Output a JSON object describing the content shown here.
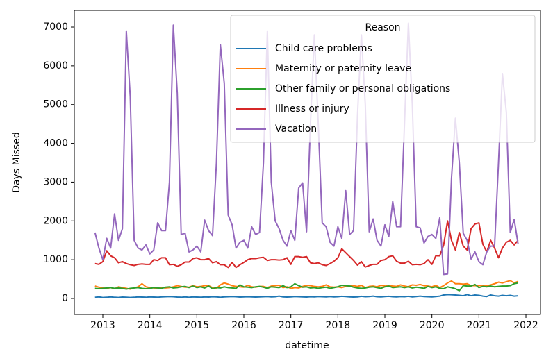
{
  "chart_data": {
    "type": "line",
    "xlabel": "datetime",
    "ylabel": "Days Missed",
    "legend_title": "Reason",
    "legend": "upper right",
    "grid": false,
    "xlim": [
      2012.394,
      2022.31
    ],
    "xticks": [
      2013,
      2014,
      2015,
      2016,
      2017,
      2018,
      2019,
      2020,
      2021,
      2022
    ],
    "ylim": [
      -412,
      7430
    ],
    "yticks": [
      0,
      1000,
      2000,
      3000,
      4000,
      5000,
      6000,
      7000
    ],
    "x": [
      "2012-11",
      "2012-12",
      "2013-01",
      "2013-02",
      "2013-03",
      "2013-04",
      "2013-05",
      "2013-06",
      "2013-07",
      "2013-08",
      "2013-09",
      "2013-10",
      "2013-11",
      "2013-12",
      "2014-01",
      "2014-02",
      "2014-03",
      "2014-04",
      "2014-05",
      "2014-06",
      "2014-07",
      "2014-08",
      "2014-09",
      "2014-10",
      "2014-11",
      "2014-12",
      "2015-01",
      "2015-02",
      "2015-03",
      "2015-04",
      "2015-05",
      "2015-06",
      "2015-07",
      "2015-08",
      "2015-09",
      "2015-10",
      "2015-11",
      "2015-12",
      "2016-01",
      "2016-02",
      "2016-03",
      "2016-04",
      "2016-05",
      "2016-06",
      "2016-07",
      "2016-08",
      "2016-09",
      "2016-10",
      "2016-11",
      "2016-12",
      "2017-01",
      "2017-02",
      "2017-03",
      "2017-04",
      "2017-05",
      "2017-06",
      "2017-07",
      "2017-08",
      "2017-09",
      "2017-10",
      "2017-11",
      "2017-12",
      "2018-01",
      "2018-02",
      "2018-03",
      "2018-04",
      "2018-05",
      "2018-06",
      "2018-07",
      "2018-08",
      "2018-09",
      "2018-10",
      "2018-11",
      "2018-12",
      "2019-01",
      "2019-02",
      "2019-03",
      "2019-04",
      "2019-05",
      "2019-06",
      "2019-07",
      "2019-08",
      "2019-09",
      "2019-10",
      "2019-11",
      "2019-12",
      "2020-01",
      "2020-02",
      "2020-03",
      "2020-04",
      "2020-05",
      "2020-06",
      "2020-07",
      "2020-08",
      "2020-09",
      "2020-10",
      "2020-11",
      "2020-12",
      "2021-01",
      "2021-02",
      "2021-03",
      "2021-04",
      "2021-05",
      "2021-06",
      "2021-07",
      "2021-08",
      "2021-09",
      "2021-10",
      "2021-11"
    ],
    "series": [
      {
        "name": "Child care problems",
        "color": "#1f77b4",
        "values": [
          30,
          40,
          25,
          30,
          40,
          30,
          25,
          35,
          30,
          25,
          30,
          40,
          35,
          30,
          40,
          35,
          30,
          40,
          45,
          50,
          45,
          35,
          30,
          40,
          30,
          40,
          35,
          30,
          40,
          35,
          45,
          40,
          30,
          40,
          45,
          50,
          45,
          35,
          40,
          45,
          40,
          35,
          40,
          45,
          50,
          40,
          45,
          60,
          40,
          35,
          40,
          50,
          45,
          40,
          35,
          45,
          40,
          50,
          45,
          40,
          50,
          40,
          45,
          55,
          50,
          40,
          35,
          40,
          55,
          45,
          50,
          60,
          45,
          40,
          50,
          55,
          45,
          40,
          50,
          45,
          55,
          40,
          50,
          60,
          50,
          45,
          40,
          50,
          60,
          90,
          100,
          95,
          90,
          80,
          70,
          100,
          70,
          90,
          80,
          60,
          50,
          90,
          70,
          60,
          80,
          70,
          80,
          60,
          70
        ]
      },
      {
        "name": "Maternity or paternity leave",
        "color": "#ff7f0e",
        "values": [
          320,
          290,
          270,
          260,
          280,
          250,
          300,
          280,
          260,
          240,
          270,
          300,
          380,
          300,
          280,
          270,
          260,
          280,
          270,
          280,
          300,
          330,
          310,
          290,
          290,
          330,
          300,
          310,
          330,
          330,
          280,
          260,
          350,
          400,
          370,
          330,
          310,
          300,
          290,
          340,
          300,
          290,
          310,
          310,
          280,
          320,
          330,
          340,
          280,
          300,
          260,
          280,
          270,
          310,
          340,
          330,
          310,
          300,
          310,
          350,
          300,
          290,
          300,
          280,
          310,
          320,
          330,
          310,
          340,
          280,
          310,
          320,
          300,
          340,
          320,
          330,
          320,
          310,
          350,
          320,
          300,
          350,
          340,
          360,
          330,
          320,
          300,
          340,
          280,
          330,
          400,
          450,
          380,
          380,
          370,
          380,
          330,
          330,
          330,
          340,
          330,
          350,
          380,
          420,
          400,
          430,
          460,
          400,
          440
        ]
      },
      {
        "name": "Other family or personal obligations",
        "color": "#2ca02c",
        "values": [
          260,
          250,
          260,
          270,
          280,
          260,
          270,
          260,
          240,
          260,
          270,
          280,
          260,
          250,
          260,
          280,
          270,
          260,
          290,
          300,
          270,
          280,
          300,
          310,
          280,
          320,
          280,
          300,
          270,
          320,
          250,
          280,
          270,
          300,
          280,
          270,
          260,
          350,
          300,
          290,
          280,
          300,
          310,
          290,
          260,
          300,
          290,
          280,
          330,
          280,
          300,
          380,
          330,
          290,
          300,
          270,
          280,
          260,
          280,
          290,
          260,
          280,
          300,
          340,
          330,
          320,
          290,
          270,
          260,
          270,
          290,
          300,
          280,
          260,
          300,
          320,
          280,
          290,
          300,
          280,
          300,
          270,
          290,
          280,
          260,
          310,
          280,
          300,
          260,
          250,
          300,
          280,
          250,
          200,
          330,
          320,
          320,
          360,
          280,
          310,
          300,
          320,
          300,
          310,
          320,
          320,
          330,
          380,
          400
        ]
      },
      {
        "name": "Illness or injury",
        "color": "#d62728",
        "values": [
          900,
          880,
          950,
          1230,
          1100,
          1050,
          920,
          950,
          900,
          870,
          850,
          880,
          890,
          880,
          880,
          1000,
          980,
          1050,
          1050,
          870,
          880,
          830,
          870,
          940,
          940,
          1030,
          1050,
          1000,
          1000,
          1030,
          920,
          950,
          870,
          870,
          800,
          930,
          800,
          870,
          930,
          1000,
          1030,
          1030,
          1050,
          1060,
          980,
          1000,
          1000,
          990,
          1000,
          1050,
          880,
          1080,
          1080,
          1060,
          1080,
          920,
          900,
          920,
          870,
          850,
          900,
          960,
          1050,
          1280,
          1180,
          1080,
          980,
          860,
          950,
          810,
          850,
          880,
          880,
          980,
          1000,
          1080,
          1100,
          960,
          910,
          910,
          960,
          870,
          880,
          870,
          900,
          1000,
          880,
          1100,
          1100,
          1380,
          2000,
          1500,
          1250,
          1700,
          1350,
          1250,
          1800,
          1920,
          1950,
          1400,
          1200,
          1500,
          1300,
          1050,
          1300,
          1450,
          1500,
          1380,
          1500
        ]
      },
      {
        "name": "Vacation",
        "color": "#9467bd",
        "values": [
          1700,
          1300,
          1000,
          1550,
          1300,
          2180,
          1500,
          1800,
          6900,
          5200,
          1500,
          1300,
          1250,
          1380,
          1150,
          1250,
          1950,
          1750,
          1750,
          3000,
          7050,
          5300,
          1650,
          1680,
          1200,
          1250,
          1350,
          1200,
          2020,
          1750,
          1620,
          3500,
          6550,
          5550,
          2150,
          1900,
          1300,
          1450,
          1500,
          1300,
          1850,
          1650,
          1700,
          3500,
          6900,
          3000,
          2000,
          1800,
          1500,
          1350,
          1750,
          1500,
          2850,
          2980,
          1720,
          4500,
          6800,
          4500,
          1950,
          1850,
          1450,
          1350,
          1850,
          1550,
          2780,
          1650,
          1750,
          4700,
          6800,
          5000,
          1720,
          2050,
          1500,
          1350,
          1900,
          1600,
          2500,
          1850,
          1850,
          4500,
          7100,
          5000,
          1850,
          1820,
          1430,
          1600,
          1650,
          1550,
          2080,
          620,
          630,
          3100,
          4650,
          3500,
          1680,
          1500,
          1020,
          1200,
          950,
          870,
          1200,
          1350,
          1350,
          3500,
          5800,
          4800,
          1700,
          2040,
          1400
        ]
      }
    ]
  }
}
